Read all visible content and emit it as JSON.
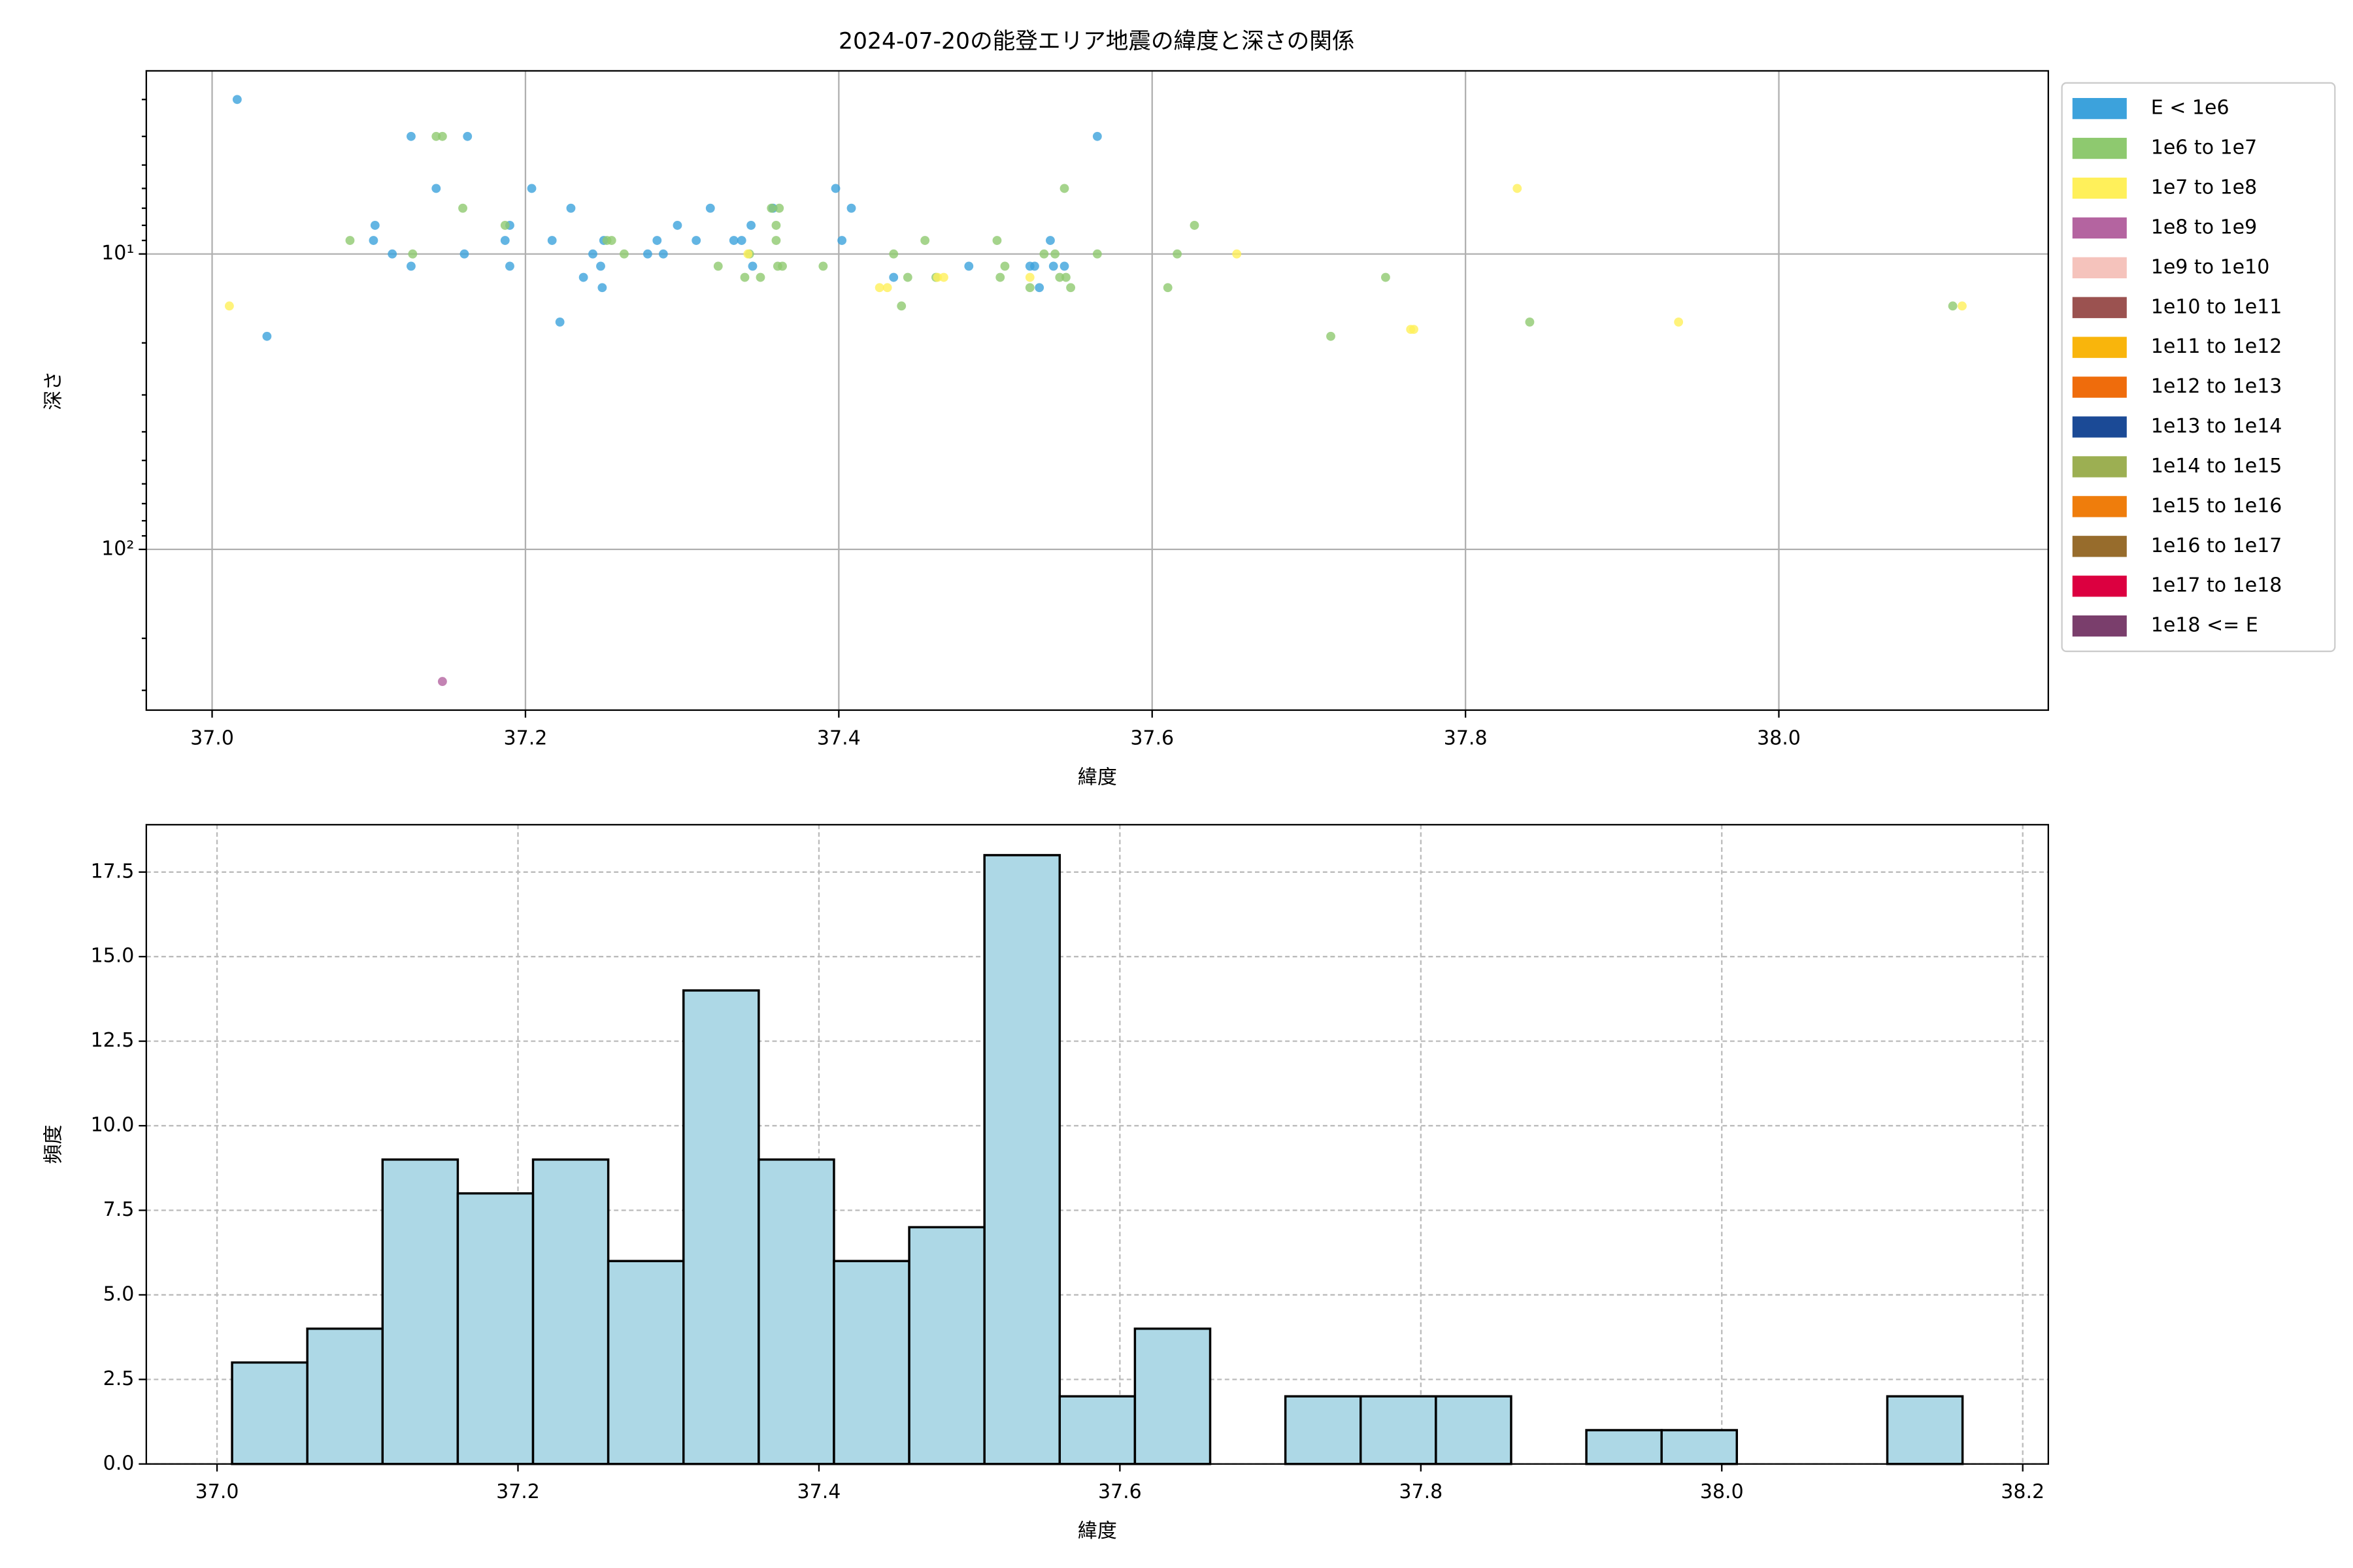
{
  "chart_data": [
    {
      "type": "scatter",
      "title": "2024-07-20の能登エリア地震の緯度と深さの関係",
      "xlabel": "緯度",
      "ylabel": "深さ",
      "xlim": [
        36.958,
        38.172
      ],
      "ylim": [
        2.4,
        350
      ],
      "yscale": "log",
      "y_inverted": true,
      "grid": true,
      "legend": "upper right outside",
      "xticks": [
        {
          "value": 37.0,
          "label": "37.0"
        },
        {
          "value": 37.2,
          "label": "37.2"
        },
        {
          "value": 37.4,
          "label": "37.4"
        },
        {
          "value": 37.6,
          "label": "37.6"
        },
        {
          "value": 37.8,
          "label": "37.8"
        },
        {
          "value": 38.0,
          "label": "38.0"
        }
      ],
      "yticks": [
        {
          "value": 10,
          "label": "10¹"
        },
        {
          "value": 100,
          "label": "10²"
        }
      ],
      "yminorticks": [
        3,
        4,
        5,
        6,
        7,
        8,
        9,
        20,
        30,
        40,
        50,
        60,
        70,
        80,
        90,
        200,
        300
      ],
      "series": [
        {
          "name": "E < 1e6",
          "color": "#3ca2dc",
          "x": [
            37.016,
            37.035,
            37.104,
            37.103,
            37.127,
            37.115,
            37.127,
            37.143,
            37.163,
            37.161,
            37.187,
            37.19,
            37.19,
            37.204,
            37.217,
            37.222,
            37.229,
            37.237,
            37.243,
            37.248,
            37.249,
            37.25,
            37.278,
            37.284,
            37.288,
            37.297,
            37.309,
            37.318,
            37.333,
            37.338,
            37.344,
            37.345,
            37.358,
            37.398,
            37.402,
            37.408,
            37.435,
            37.483,
            37.522,
            37.525,
            37.528,
            37.535,
            37.537,
            37.544,
            37.565
          ],
          "values": [
            3,
            19,
            8,
            9,
            4,
            10,
            11,
            6,
            4,
            10,
            9,
            8,
            11,
            6,
            9,
            17,
            7,
            12,
            10,
            11,
            13,
            9,
            10,
            9,
            10,
            8,
            9,
            7,
            9,
            9,
            8,
            11,
            7,
            6,
            9,
            7,
            12,
            11,
            11,
            11,
            13,
            9,
            11,
            11,
            4
          ]
        },
        {
          "name": "1e6 to 1e7",
          "color": "#8ec96f",
          "x": [
            37.088,
            37.128,
            37.143,
            37.147,
            37.16,
            37.187,
            37.252,
            37.255,
            37.263,
            37.323,
            37.34,
            37.343,
            37.35,
            37.357,
            37.362,
            37.36,
            37.36,
            37.361,
            37.364,
            37.39,
            37.435,
            37.44,
            37.444,
            37.455,
            37.462,
            37.501,
            37.503,
            37.506,
            37.522,
            37.531,
            37.538,
            37.541,
            37.544,
            37.545,
            37.548,
            37.565,
            37.61,
            37.616,
            37.627,
            37.714,
            37.749,
            37.841,
            38.111
          ],
          "values": [
            9,
            10,
            4,
            4,
            7,
            8,
            9,
            9,
            10,
            11,
            12,
            10,
            12,
            7,
            7,
            8,
            9,
            11,
            11,
            11,
            10,
            15,
            12,
            9,
            12,
            9,
            12,
            11,
            13,
            10,
            10,
            12,
            6,
            12,
            13,
            10,
            13,
            10,
            8,
            19,
            12,
            17,
            15
          ]
        },
        {
          "name": "1e7 to 1e8",
          "color": "#fff05a",
          "x": [
            37.011,
            37.342,
            37.426,
            37.431,
            37.463,
            37.467,
            37.522,
            37.654,
            37.765,
            37.767,
            37.833,
            37.936,
            38.117
          ],
          "values": [
            15,
            10,
            13,
            13,
            12,
            12,
            12,
            10,
            18,
            18,
            6,
            17,
            15
          ]
        },
        {
          "name": "1e8 to 1e9",
          "color": "#b464a0",
          "x": [
            37.147
          ],
          "values": [
            280
          ]
        },
        {
          "name": "1e9 to 1e10",
          "color": "#f5c3bc",
          "x": [],
          "values": []
        },
        {
          "name": "1e10 to 1e11",
          "color": "#9b5250",
          "x": [],
          "values": []
        },
        {
          "name": "1e11 to 1e12",
          "color": "#f9b50c",
          "x": [],
          "values": []
        },
        {
          "name": "1e12 to 1e13",
          "color": "#ef6c0c",
          "x": [],
          "values": []
        },
        {
          "name": "1e13 to 1e14",
          "color": "#1b4a96",
          "x": [],
          "values": []
        },
        {
          "name": "1e14 to 1e15",
          "color": "#9caf52",
          "x": [],
          "values": []
        },
        {
          "name": "1e15 to 1e16",
          "color": "#ef7d0c",
          "x": [],
          "values": []
        },
        {
          "name": "1e16 to 1e17",
          "color": "#976c2c",
          "x": [],
          "values": []
        },
        {
          "name": "1e17 to 1e18",
          "color": "#dc0040",
          "x": [],
          "values": []
        },
        {
          "name": "1e18 <= E",
          "color": "#7a3e6c",
          "x": [],
          "values": []
        }
      ]
    },
    {
      "type": "histogram",
      "xlabel": "緯度",
      "ylabel": "頻度",
      "color": "#add8e6",
      "edgecolor": "#000000",
      "grid": true,
      "xlim": [
        36.953,
        38.217
      ],
      "ylim": [
        0,
        18.9
      ],
      "xticks": [
        {
          "value": 37.0,
          "label": "37.0"
        },
        {
          "value": 37.2,
          "label": "37.2"
        },
        {
          "value": 37.4,
          "label": "37.4"
        },
        {
          "value": 37.6,
          "label": "37.6"
        },
        {
          "value": 37.8,
          "label": "37.8"
        },
        {
          "value": 38.0,
          "label": "38.0"
        },
        {
          "value": 38.2,
          "label": "38.2"
        }
      ],
      "yticks": [
        {
          "value": 0,
          "label": "0.0"
        },
        {
          "value": 2.5,
          "label": "2.5"
        },
        {
          "value": 5,
          "label": "5.0"
        },
        {
          "value": 7.5,
          "label": "7.5"
        },
        {
          "value": 10,
          "label": "10.0"
        },
        {
          "value": 12.5,
          "label": "12.5"
        },
        {
          "value": 15,
          "label": "15.0"
        },
        {
          "value": 17.5,
          "label": "17.5"
        }
      ],
      "bins": [
        37.01,
        37.06,
        37.11,
        37.16,
        37.21,
        37.26,
        37.31,
        37.36,
        37.41,
        37.46,
        37.51,
        37.56,
        37.61,
        37.66,
        37.71,
        37.76,
        37.81,
        37.86,
        37.91,
        37.96,
        38.01,
        38.06,
        38.11,
        38.16
      ],
      "counts": [
        3,
        4,
        9,
        8,
        9,
        6,
        14,
        9,
        6,
        7,
        18,
        2,
        4,
        0,
        2,
        2,
        2,
        0,
        1,
        1,
        0,
        0,
        2
      ]
    }
  ]
}
